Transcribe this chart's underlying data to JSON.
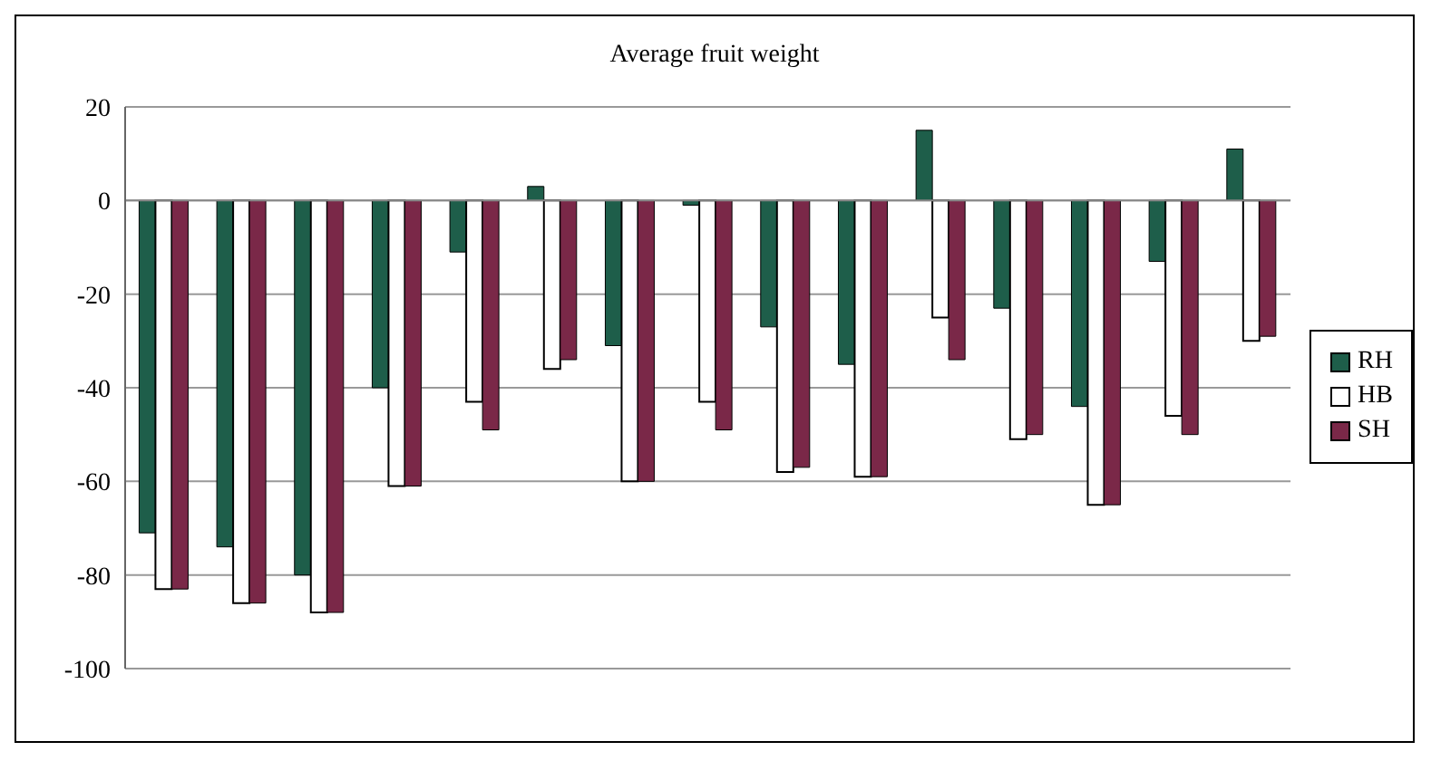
{
  "chart_data": {
    "type": "bar",
    "title": "Average fruit weight",
    "categories": [
      null,
      null,
      null,
      null,
      null,
      null,
      null,
      null,
      null,
      null,
      null,
      null,
      null,
      null,
      null
    ],
    "series": [
      {
        "name": "RH",
        "color": "#1e5e4a",
        "values": [
          -71,
          -74,
          -80,
          -40,
          -11,
          3,
          -31,
          -1,
          -27,
          -35,
          15,
          -23,
          -44,
          -13,
          11
        ]
      },
      {
        "name": "HB",
        "color": "#ffffff",
        "values": [
          -83,
          -86,
          -88,
          -61,
          -43,
          -36,
          -60,
          -43,
          -58,
          -59,
          -25,
          -51,
          -65,
          -46,
          -30
        ]
      },
      {
        "name": "SH",
        "color": "#7a2848",
        "values": [
          -83,
          -86,
          -88,
          -61,
          -49,
          -34,
          -60,
          -49,
          -57,
          -59,
          -34,
          -50,
          -65,
          -50,
          -29
        ]
      }
    ],
    "ylim": [
      -100,
      20
    ],
    "yticks": [
      -100,
      -80,
      -60,
      -40,
      -20,
      0,
      20
    ],
    "grid": "y",
    "legend": "right"
  }
}
